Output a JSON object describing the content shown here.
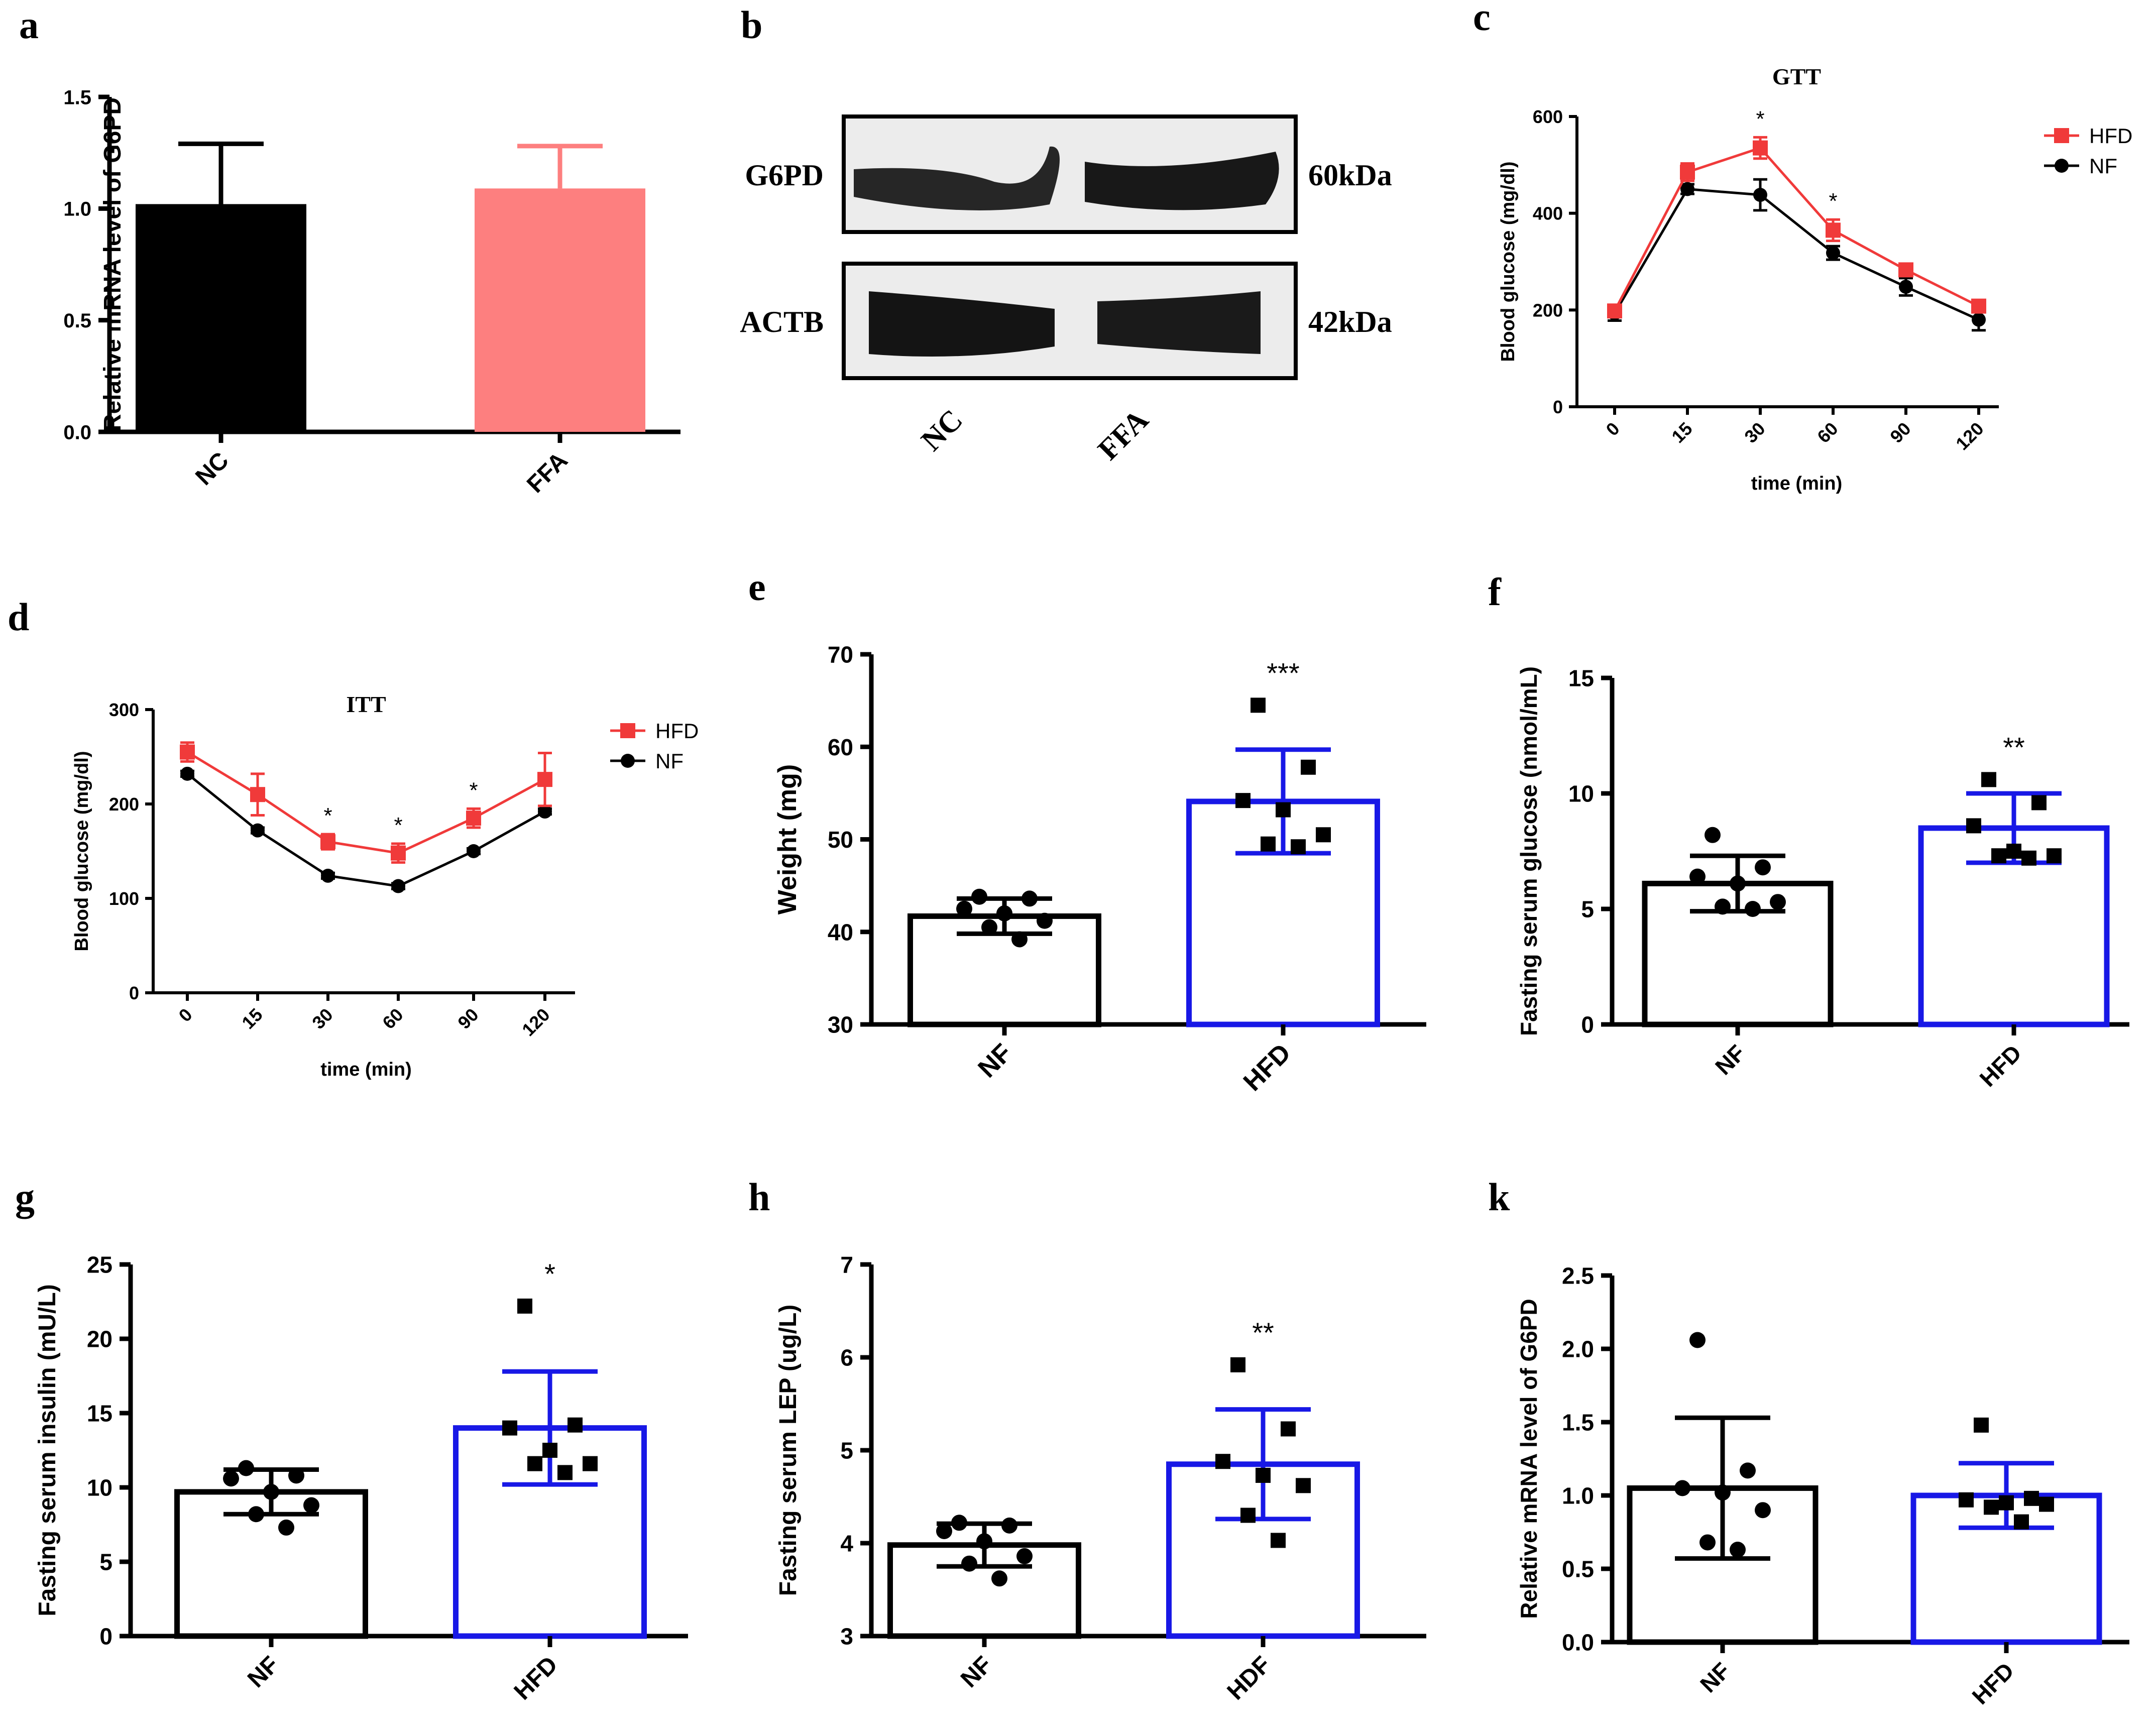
{
  "colors": {
    "black": "#000000",
    "salmon": "#fd7f7f",
    "red": "#f03a3a",
    "blue": "#1818e6",
    "white": "#ffffff"
  },
  "chart_data": [
    {
      "id": "a",
      "type": "bar",
      "panel_label": "a",
      "ylabel": "Relative mRNA level of G6PD",
      "ylim": [
        0,
        1.5
      ],
      "yticks": [
        0,
        0.5,
        1.0,
        1.5
      ],
      "ytick_labels": [
        "0.0",
        "0.5",
        "1.0",
        "1.5"
      ],
      "categories": [
        "NC",
        "FFA"
      ],
      "values": [
        1.02,
        1.09
      ],
      "errors": [
        0.27,
        0.19
      ],
      "bar_fills": [
        "#000000",
        "#fd7f7f"
      ]
    },
    {
      "id": "b",
      "type": "blot",
      "panel_label": "b",
      "rows": [
        {
          "label": "G6PD",
          "size": "60kDa"
        },
        {
          "label": "ACTB",
          "size": "42kDa"
        }
      ],
      "lanes": [
        "NC",
        "FFA"
      ]
    },
    {
      "id": "c",
      "type": "line",
      "panel_label": "c",
      "title": "GTT",
      "xlabel": "time (min)",
      "ylabel": "Blood glucose (mg/dl)",
      "x": [
        0,
        15,
        30,
        60,
        90,
        120
      ],
      "ylim": [
        0,
        600
      ],
      "yticks": [
        0,
        200,
        400,
        600
      ],
      "series": [
        {
          "name": "HFD",
          "color": "#f03a3a",
          "marker": "square",
          "values": [
            198,
            485,
            535,
            365,
            283,
            208
          ],
          "errors": [
            12,
            18,
            22,
            22,
            12,
            10
          ]
        },
        {
          "name": "NF",
          "color": "#000000",
          "marker": "circle",
          "values": [
            193,
            450,
            438,
            318,
            248,
            180
          ],
          "errors": [
            15,
            10,
            32,
            14,
            18,
            22
          ]
        }
      ],
      "significance": [
        {
          "x": 30,
          "label": "*"
        },
        {
          "x": 60,
          "label": "*"
        }
      ],
      "legend_position": "top-right"
    },
    {
      "id": "d",
      "type": "line",
      "panel_label": "d",
      "title": "ITT",
      "xlabel": "time (min)",
      "ylabel": "Blood glucose (mg/dl)",
      "x": [
        0,
        15,
        30,
        60,
        90,
        120
      ],
      "ylim": [
        0,
        300
      ],
      "yticks": [
        0,
        100,
        200,
        300
      ],
      "series": [
        {
          "name": "HFD",
          "color": "#f03a3a",
          "marker": "square",
          "values": [
            255,
            210,
            160,
            148,
            185,
            226
          ],
          "errors": [
            10,
            22,
            8,
            10,
            10,
            28
          ]
        },
        {
          "name": "NF",
          "color": "#000000",
          "marker": "circle",
          "values": [
            232,
            172,
            124,
            113,
            150,
            192
          ],
          "errors": [
            3,
            3,
            3,
            3,
            3,
            3
          ]
        }
      ],
      "significance": [
        {
          "x": 30,
          "label": "*"
        },
        {
          "x": 60,
          "label": "*"
        },
        {
          "x": 90,
          "label": "*"
        }
      ],
      "legend_position": "top-right"
    },
    {
      "id": "e",
      "type": "bar",
      "panel_label": "e",
      "ylabel": "Weight (mg)",
      "ylim": [
        30,
        70
      ],
      "yticks": [
        30,
        40,
        50,
        60,
        70
      ],
      "categories": [
        "NF",
        "HFD"
      ],
      "values": [
        41.7,
        54.1
      ],
      "errors": [
        1.9,
        5.6
      ],
      "bar_outlines": [
        "#000000",
        "#1818e6"
      ],
      "significance": [
        "",
        "***"
      ],
      "points": [
        {
          "group": 0,
          "marker": "circle",
          "values": [
            43.8,
            43.6,
            42.5,
            42.0,
            41.2,
            40.5,
            39.2
          ]
        },
        {
          "group": 1,
          "marker": "square",
          "values": [
            64.5,
            57.8,
            54.2,
            53.2,
            50.5,
            49.5,
            49.2
          ]
        }
      ]
    },
    {
      "id": "f",
      "type": "bar",
      "panel_label": "f",
      "ylabel": "Fasting serum glucose (nmol/mL)",
      "ylim": [
        0,
        15
      ],
      "yticks": [
        0,
        5,
        10,
        15
      ],
      "categories": [
        "NF",
        "HFD"
      ],
      "values": [
        6.1,
        8.5
      ],
      "errors": [
        1.2,
        1.5
      ],
      "bar_outlines": [
        "#000000",
        "#1818e6"
      ],
      "significance": [
        "",
        "**"
      ],
      "points": [
        {
          "group": 0,
          "marker": "circle",
          "values": [
            8.2,
            6.8,
            6.4,
            6.1,
            5.3,
            5.1,
            5.0
          ]
        },
        {
          "group": 1,
          "marker": "square",
          "values": [
            10.6,
            9.6,
            8.6,
            7.5,
            7.3,
            7.3,
            7.2
          ]
        }
      ]
    },
    {
      "id": "g",
      "type": "bar",
      "panel_label": "g",
      "ylabel": "Fasting serum insulin (mU/L)",
      "ylim": [
        0,
        25
      ],
      "yticks": [
        0,
        5,
        10,
        15,
        20,
        25
      ],
      "categories": [
        "NF",
        "HFD"
      ],
      "values": [
        9.7,
        14.0
      ],
      "errors": [
        1.5,
        3.8
      ],
      "bar_outlines": [
        "#000000",
        "#1818e6"
      ],
      "significance": [
        "",
        "*"
      ],
      "points": [
        {
          "group": 0,
          "marker": "circle",
          "values": [
            11.3,
            10.8,
            10.6,
            9.7,
            8.8,
            8.2,
            7.3
          ]
        },
        {
          "group": 1,
          "marker": "square",
          "values": [
            22.2,
            14.2,
            14.0,
            12.5,
            11.6,
            11.6,
            11.0
          ]
        }
      ]
    },
    {
      "id": "h",
      "type": "bar",
      "panel_label": "h",
      "ylabel": "Fasting serum LEP (ug/L)",
      "ylim": [
        3,
        7
      ],
      "yticks": [
        3,
        4,
        5,
        6,
        7
      ],
      "categories": [
        "NF",
        "HDF"
      ],
      "values": [
        3.98,
        4.85
      ],
      "errors": [
        0.23,
        0.59
      ],
      "bar_outlines": [
        "#000000",
        "#1818e6"
      ],
      "significance": [
        "",
        "**"
      ],
      "points": [
        {
          "group": 0,
          "marker": "circle",
          "values": [
            4.22,
            4.19,
            4.13,
            4.02,
            3.86,
            3.78,
            3.62
          ]
        },
        {
          "group": 1,
          "marker": "square",
          "values": [
            5.92,
            5.23,
            4.88,
            4.73,
            4.62,
            4.3,
            4.03
          ]
        }
      ]
    },
    {
      "id": "k",
      "type": "bar",
      "panel_label": "k",
      "ylabel": "Relative mRNA level of G6PD",
      "ylim": [
        0,
        2.5
      ],
      "yticks": [
        0,
        0.5,
        1.0,
        1.5,
        2.0,
        2.5
      ],
      "ytick_labels": [
        "0.0",
        "0.5",
        "1.0",
        "1.5",
        "2.0",
        "2.5"
      ],
      "categories": [
        "NF",
        "HFD"
      ],
      "values": [
        1.05,
        1.0
      ],
      "errors": [
        0.48,
        0.22
      ],
      "bar_outlines": [
        "#000000",
        "#1818e6"
      ],
      "significance": [
        "",
        ""
      ],
      "points": [
        {
          "group": 0,
          "marker": "circle",
          "values": [
            2.06,
            1.17,
            1.05,
            1.02,
            0.9,
            0.68,
            0.63
          ]
        },
        {
          "group": 1,
          "marker": "square",
          "values": [
            1.48,
            0.98,
            0.97,
            0.95,
            0.94,
            0.92,
            0.82
          ]
        }
      ]
    }
  ]
}
